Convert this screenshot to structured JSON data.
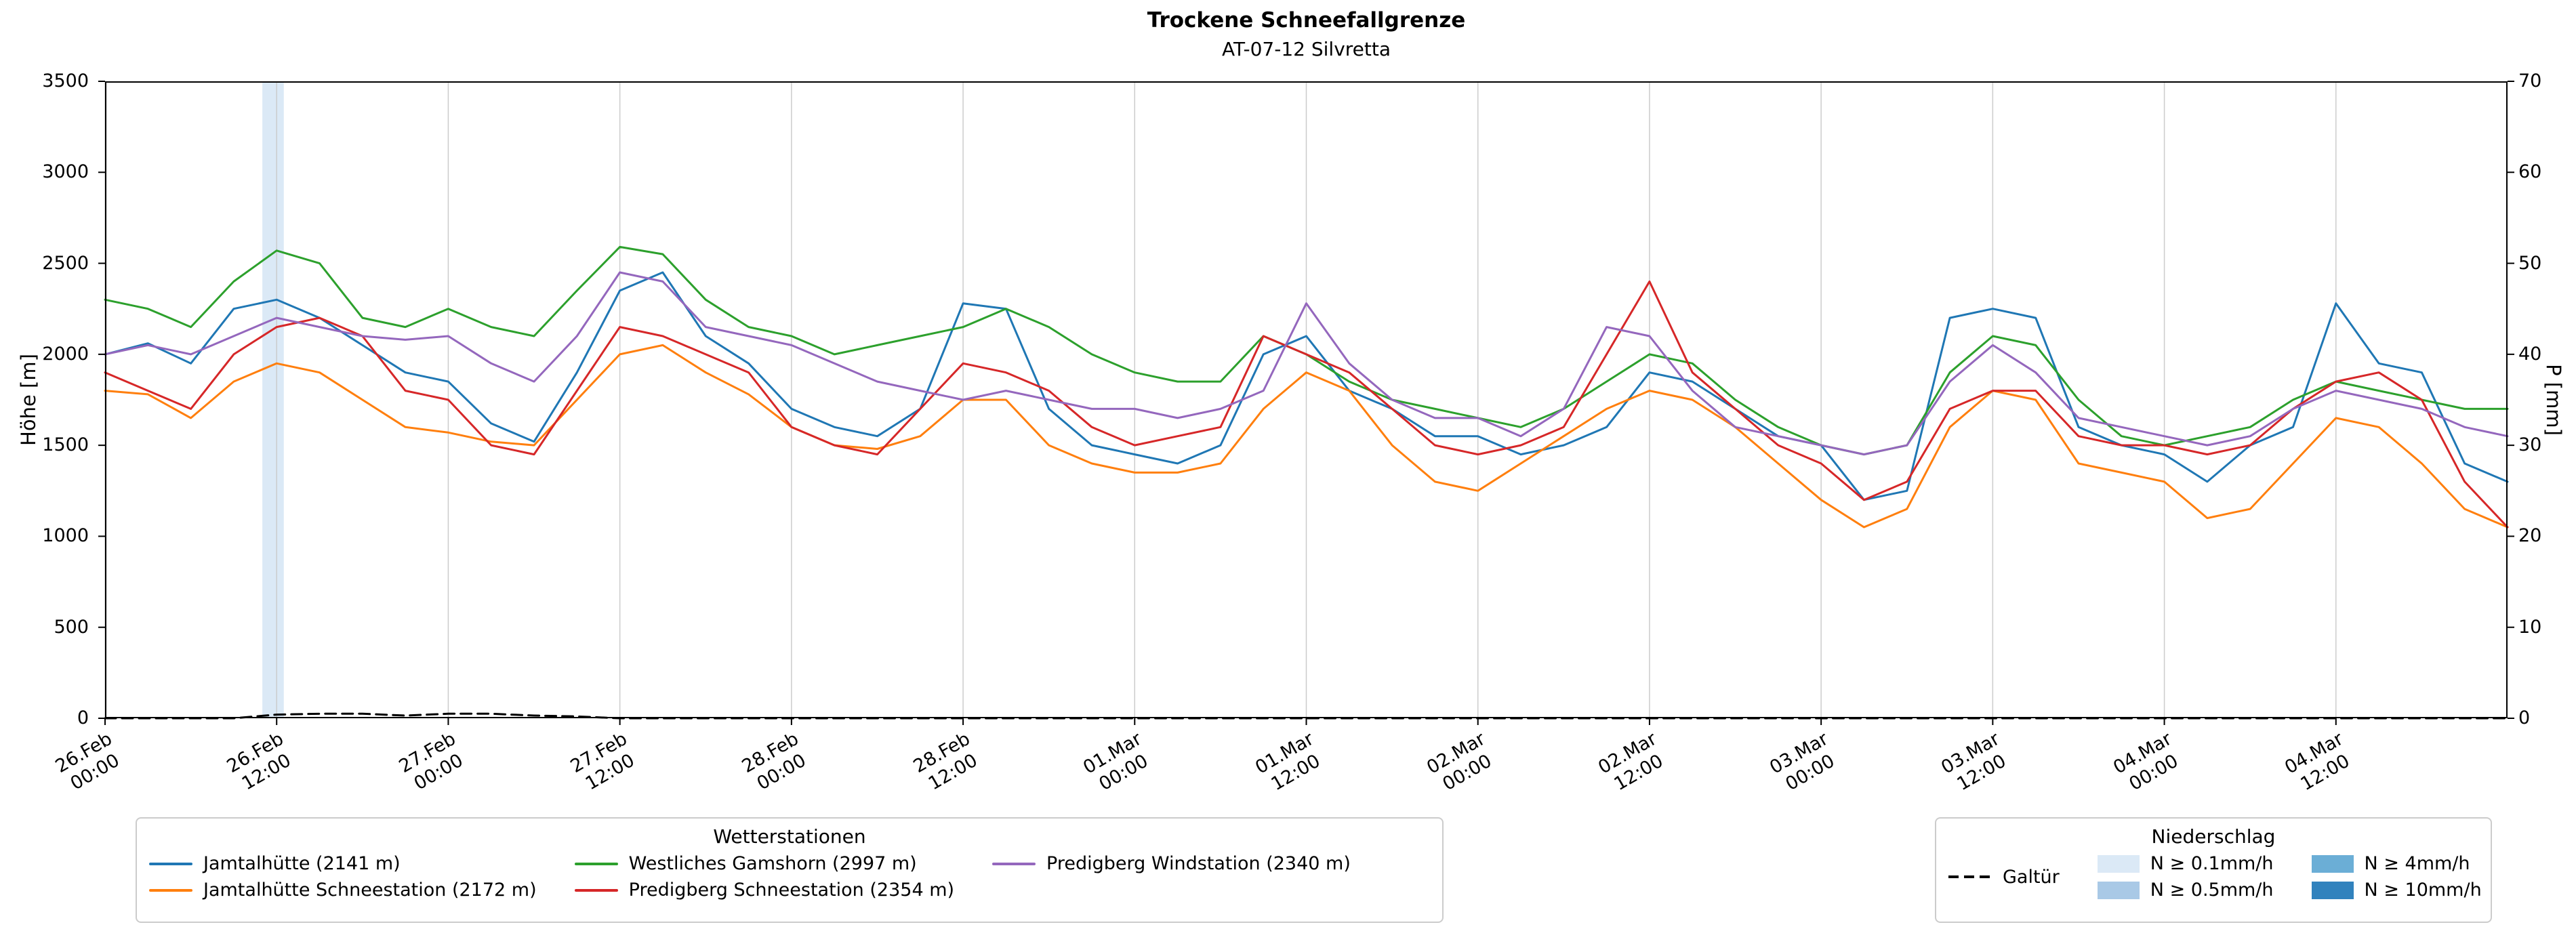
{
  "chart": {
    "title": "Trockene Schneefallgrenze",
    "subtitle": "AT-07-12 Silvretta",
    "ylabel_left": "Höhe [m]",
    "ylabel_right": "P [mm]"
  },
  "legend": {
    "stations_title": "Wetterstationen",
    "precip_title": "Niederschlag",
    "galtuer_label": "Galtür",
    "precip_items": [
      {
        "label": "N ≥ 0.1mm/h",
        "color": "#dbe9f6"
      },
      {
        "label": "N ≥ 0.5mm/h",
        "color": "#a9c9e6"
      },
      {
        "label": "N ≥ 4mm/h",
        "color": "#6baed6"
      },
      {
        "label": "N ≥ 10mm/h",
        "color": "#3182bd"
      }
    ]
  },
  "chart_data": {
    "type": "line",
    "title": "Trockene Schneefallgrenze",
    "subtitle": "AT-07-12 Silvretta",
    "xlabel": "",
    "ylabel_left": "Höhe [m]",
    "ylabel_right": "P [mm]",
    "x_unit": "hours since 26.Feb 00:00",
    "x_range": [
      0,
      168
    ],
    "ylim_left": [
      0,
      3500
    ],
    "ylim_right": [
      0,
      70
    ],
    "yticks_left": [
      0,
      500,
      1000,
      1500,
      2000,
      2500,
      3000,
      3500
    ],
    "yticks_right": [
      0,
      10,
      20,
      30,
      40,
      50,
      60,
      70
    ],
    "x_ticks": [
      0,
      12,
      24,
      36,
      48,
      60,
      72,
      84,
      96,
      108,
      120,
      132,
      144,
      156
    ],
    "x_tick_labels": [
      "26.Feb\n00:00",
      "26.Feb\n12:00",
      "27.Feb\n00:00",
      "27.Feb\n12:00",
      "28.Feb\n00:00",
      "28.Feb\n12:00",
      "01.Mar\n00:00",
      "01.Mar\n12:00",
      "02.Mar\n00:00",
      "02.Mar\n12:00",
      "03.Mar\n00:00",
      "03.Mar\n12:00",
      "04.Mar\n00:00",
      "04.Mar\n12:00"
    ],
    "grid": "vertical-only",
    "x": [
      0,
      3,
      6,
      9,
      12,
      15,
      18,
      21,
      24,
      27,
      30,
      33,
      36,
      39,
      42,
      45,
      48,
      51,
      54,
      57,
      60,
      63,
      66,
      69,
      72,
      75,
      78,
      81,
      84,
      87,
      90,
      93,
      96,
      99,
      102,
      105,
      108,
      111,
      114,
      117,
      120,
      123,
      126,
      129,
      132,
      135,
      138,
      141,
      144,
      147,
      150,
      153,
      156,
      159,
      162,
      165,
      168
    ],
    "series": [
      {
        "name": "Jamtalhütte (2141 m)",
        "color": "#1f77b4",
        "axis": "left",
        "values": [
          2000,
          2060,
          1950,
          2250,
          2300,
          2200,
          2050,
          1900,
          1850,
          1620,
          1520,
          1900,
          2350,
          2450,
          2100,
          1950,
          1700,
          1600,
          1550,
          1700,
          2280,
          2250,
          1700,
          1500,
          1450,
          1400,
          1500,
          2000,
          2100,
          1800,
          1700,
          1550,
          1550,
          1450,
          1500,
          1600,
          1900,
          1850,
          1700,
          1550,
          1500,
          1200,
          1250,
          2200,
          2250,
          2200,
          1600,
          1500,
          1450,
          1300,
          1500,
          1600,
          2280,
          1950,
          1900,
          1400,
          1300
        ]
      },
      {
        "name": "Jamtalhütte Schneestation (2172 m)",
        "color": "#ff7f0e",
        "axis": "left",
        "values": [
          1800,
          1780,
          1650,
          1850,
          1950,
          1900,
          1750,
          1600,
          1570,
          1520,
          1500,
          1750,
          2000,
          2050,
          1900,
          1780,
          1600,
          1500,
          1480,
          1550,
          1750,
          1750,
          1500,
          1400,
          1350,
          1350,
          1400,
          1700,
          1900,
          1800,
          1500,
          1300,
          1250,
          1400,
          1550,
          1700,
          1800,
          1750,
          1600,
          1400,
          1200,
          1050,
          1150,
          1600,
          1800,
          1750,
          1400,
          1350,
          1300,
          1100,
          1150,
          1400,
          1650,
          1600,
          1400,
          1150,
          1050
        ]
      },
      {
        "name": "Westliches Gamshorn (2997 m)",
        "color": "#2ca02c",
        "axis": "left",
        "values": [
          2300,
          2250,
          2150,
          2400,
          2570,
          2500,
          2200,
          2150,
          2250,
          2150,
          2100,
          2350,
          2590,
          2550,
          2300,
          2150,
          2100,
          2000,
          2050,
          2100,
          2150,
          2250,
          2150,
          2000,
          1900,
          1850,
          1850,
          2100,
          2000,
          1850,
          1750,
          1700,
          1650,
          1600,
          1700,
          1850,
          2000,
          1950,
          1750,
          1600,
          1500,
          1450,
          1500,
          1900,
          2100,
          2050,
          1750,
          1550,
          1500,
          1550,
          1600,
          1750,
          1850,
          1800,
          1750,
          1700,
          1700
        ]
      },
      {
        "name": "Predigberg Schneestation (2354 m)",
        "color": "#d62728",
        "axis": "left",
        "values": [
          1900,
          1800,
          1700,
          2000,
          2150,
          2200,
          2100,
          1800,
          1750,
          1500,
          1450,
          1800,
          2150,
          2100,
          2000,
          1900,
          1600,
          1500,
          1450,
          1700,
          1950,
          1900,
          1800,
          1600,
          1500,
          1550,
          1600,
          2100,
          2000,
          1900,
          1700,
          1500,
          1450,
          1500,
          1600,
          2000,
          2400,
          1900,
          1700,
          1500,
          1400,
          1200,
          1300,
          1700,
          1800,
          1800,
          1550,
          1500,
          1500,
          1450,
          1500,
          1700,
          1850,
          1900,
          1750,
          1300,
          1050
        ]
      },
      {
        "name": "Predigberg Windstation (2340 m)",
        "color": "#9467bd",
        "axis": "left",
        "values": [
          2000,
          2050,
          2000,
          2100,
          2200,
          2150,
          2100,
          2080,
          2100,
          1950,
          1850,
          2100,
          2450,
          2400,
          2150,
          2100,
          2050,
          1950,
          1850,
          1800,
          1750,
          1800,
          1750,
          1700,
          1700,
          1650,
          1700,
          1800,
          2280,
          1950,
          1750,
          1650,
          1650,
          1550,
          1700,
          2150,
          2100,
          1800,
          1600,
          1550,
          1500,
          1450,
          1500,
          1850,
          2050,
          1900,
          1650,
          1600,
          1550,
          1500,
          1550,
          1700,
          1800,
          1750,
          1700,
          1600,
          1550
        ]
      },
      {
        "name": "Galtür",
        "color": "#000000",
        "axis": "right",
        "dash": true,
        "values": [
          0,
          0,
          0,
          0,
          0.4,
          0.5,
          0.5,
          0.3,
          0.5,
          0.5,
          0.3,
          0.2,
          0,
          0,
          0,
          0,
          0,
          0,
          0,
          0,
          0,
          0,
          0,
          0,
          0,
          0,
          0,
          0,
          0,
          0,
          0,
          0,
          0,
          0,
          0,
          0,
          0,
          0,
          0,
          0,
          0,
          0,
          0,
          0,
          0,
          0,
          0,
          0,
          0,
          0,
          0,
          0,
          0,
          0,
          0,
          0,
          0
        ]
      }
    ],
    "precip_bands": [
      {
        "x_start": 11,
        "x_end": 12.5,
        "level": "N ≥ 0.1mm/h",
        "color": "#dbe9f6"
      }
    ]
  }
}
